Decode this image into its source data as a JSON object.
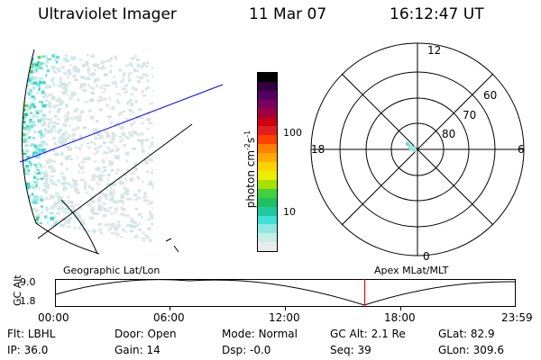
{
  "header": {
    "title": "Ultraviolet Imager",
    "date": "11 Mar 07",
    "time": "16:12:47 UT"
  },
  "colorbar": {
    "label": "photon cm",
    "exp1": "-2",
    "unit2": "s",
    "exp2": "-1",
    "ticks": [
      "100",
      "10"
    ],
    "colors": [
      "#000000",
      "#300040",
      "#550060",
      "#7a0060",
      "#a00040",
      "#cc0010",
      "#e02020",
      "#ff4000",
      "#ff8000",
      "#ffaa00",
      "#ffd200",
      "#e8f000",
      "#a8e000",
      "#40d040",
      "#20c060",
      "#20c8a0",
      "#40e0d8",
      "#90e8e0",
      "#c8ece8",
      "#e8ecec"
    ]
  },
  "polar_plot": {
    "mlt_labels": {
      "top": "12",
      "left": "18",
      "right": "6",
      "bottom": "0"
    },
    "lat_labels": [
      "60",
      "70",
      "80"
    ]
  },
  "timeline": {
    "left_label": "Geographic Lat/Lon",
    "right_label": "Apex MLat/MLT",
    "axis_title": "GC Alt",
    "y_ticks": [
      "9.0",
      "1.8"
    ],
    "x_ticks": [
      "00:00",
      "06:00",
      "12:00",
      "18:00",
      "23:59"
    ],
    "current_time_marker": "16:12:47"
  },
  "status": {
    "filter_label": "Flt:",
    "filter_value": "LBHL",
    "door_label": "Door:",
    "door_value": "Open",
    "mode_label": "Mode:",
    "mode_value": "Normal",
    "gcalt_label": "GC Alt:",
    "gcalt_value": "2.1 Re",
    "glat_label": "GLat:",
    "glat_value": "82.9",
    "ip_label": "IP:",
    "ip_value": "36.0",
    "gain_label": "Gain:",
    "gain_value": "14",
    "dsp_label": "Dsp:",
    "dsp_value": "-0.0",
    "seq_label": "Seq:",
    "seq_value": "39",
    "glon_label": "GLon:",
    "glon_value": "309.6"
  },
  "colors": {
    "axis": "#000000",
    "los_line": "#0000ff",
    "time_marker": "#ff0000"
  }
}
